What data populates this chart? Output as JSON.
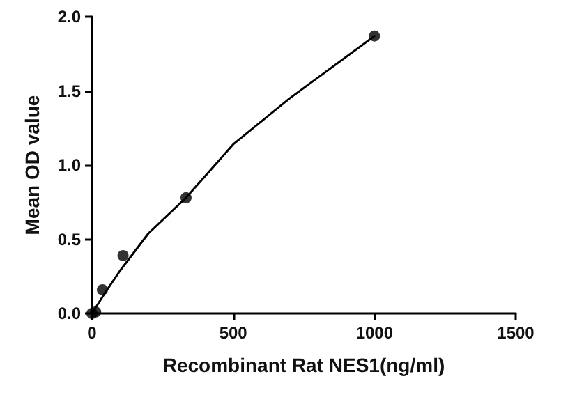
{
  "chart_data": {
    "type": "scatter",
    "xlabel": "Recombinant Rat NES1(ng/ml)",
    "ylabel": "Mean OD value",
    "xlim": [
      0,
      1500
    ],
    "xticks": [
      0,
      500,
      1000,
      1500
    ],
    "ylim": [
      0,
      2
    ],
    "yticks": [
      {
        "value": 0,
        "label": "0.0"
      },
      0.5,
      {
        "value": 1,
        "label": "1.0"
      },
      1.5,
      {
        "value": 2,
        "label": "2.0"
      }
    ],
    "grid": false,
    "marker": "circle",
    "series": [
      {
        "type": "scatter",
        "color": "#000000",
        "x": [
          0,
          13,
          37,
          110,
          333,
          1000
        ],
        "values": [
          0,
          0.01,
          0.16,
          0.39,
          0.78,
          1.87
        ]
      },
      {
        "type": "line",
        "color": "#000000",
        "marker": "none",
        "line_style": "solid",
        "x": [
          0,
          50,
          100,
          200,
          333,
          500,
          700,
          1000
        ],
        "values": [
          0,
          0.15,
          0.29,
          0.54,
          0.78,
          1.14,
          1.45,
          1.87
        ]
      }
    ]
  }
}
